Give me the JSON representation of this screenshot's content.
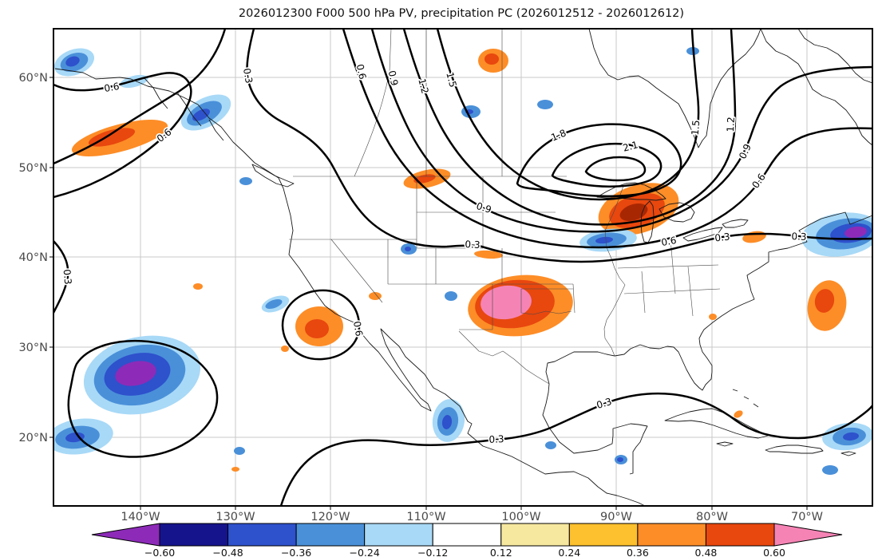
{
  "title": "2026012300 F000 500 hPa PV, precipitation PC (2026012512 - 2026012612)",
  "chart_data": {
    "type": "contour_map",
    "contour_field": "500 hPa PV",
    "shading_field": "precipitation PC",
    "init_time": "2026012300",
    "forecast_hour": "F000",
    "valid_window": "2026012512 - 2026012612",
    "contour_levels": [
      0.3,
      0.6,
      0.9,
      1.2,
      1.5,
      1.8,
      2.1,
      2.4
    ],
    "contour_labels": [
      "0.3",
      "0.6",
      "0.6",
      "0.3",
      "0.3",
      "0.3",
      "0.3",
      "0.3",
      "0.6",
      "0.9",
      "1.2",
      "1.5",
      "0.9",
      "1.8",
      "2.1",
      "1.5",
      "1.2",
      "0.9",
      "0.6",
      "0.6",
      "0.6",
      "0.3"
    ],
    "x_axis": {
      "ticks": [
        "140°W",
        "130°W",
        "120°W",
        "110°W",
        "100°W",
        "90°W",
        "80°W",
        "70°W"
      ]
    },
    "y_axis": {
      "ticks": [
        "60°N",
        "50°N",
        "40°N",
        "30°N",
        "20°N"
      ]
    },
    "colorbar": {
      "boundaries": [
        -0.6,
        -0.48,
        -0.36,
        -0.24,
        -0.12,
        0.12,
        0.24,
        0.36,
        0.48,
        0.6
      ],
      "labels": [
        "−0.60",
        "−0.48",
        "−0.36",
        "−0.24",
        "−0.12",
        "0.12",
        "0.24",
        "0.36",
        "0.48",
        "0.60"
      ],
      "segment_colors": [
        "#16148c",
        "#2e51cc",
        "#4a90d9",
        "#a8d9f7",
        "#ffffff",
        "#f7e8a0",
        "#fdc02e",
        "#fd8d27",
        "#e8470e"
      ],
      "under_color": "#8d2bb8",
      "over_color": "#f584b5"
    },
    "palette": {
      "dark_red": "#a82703"
    },
    "anomaly_regions": [
      {
        "lon": -142,
        "lat": 53,
        "value": 0.5
      },
      {
        "lon": -110,
        "lat": 49,
        "value": 0.5
      },
      {
        "lon": -88,
        "lat": 45,
        "value": 0.6
      },
      {
        "lon": -100,
        "lat": 35,
        "value": 0.65
      },
      {
        "lon": -121,
        "lat": 32,
        "value": 0.55
      },
      {
        "lon": -103,
        "lat": 62,
        "value": 0.5
      },
      {
        "lon": -68,
        "lat": 35,
        "value": 0.55
      },
      {
        "lon": -147,
        "lat": 62,
        "value": -0.4
      },
      {
        "lon": -133,
        "lat": 56,
        "value": -0.45
      },
      {
        "lon": -91,
        "lat": 42,
        "value": -0.45
      },
      {
        "lon": -140,
        "lat": 27,
        "value": -0.65
      },
      {
        "lon": -146,
        "lat": 20,
        "value": -0.45
      },
      {
        "lon": -108,
        "lat": 22,
        "value": -0.45
      },
      {
        "lon": -67,
        "lat": 42,
        "value": -0.65
      },
      {
        "lon": -66,
        "lat": 20,
        "value": -0.45
      }
    ]
  }
}
